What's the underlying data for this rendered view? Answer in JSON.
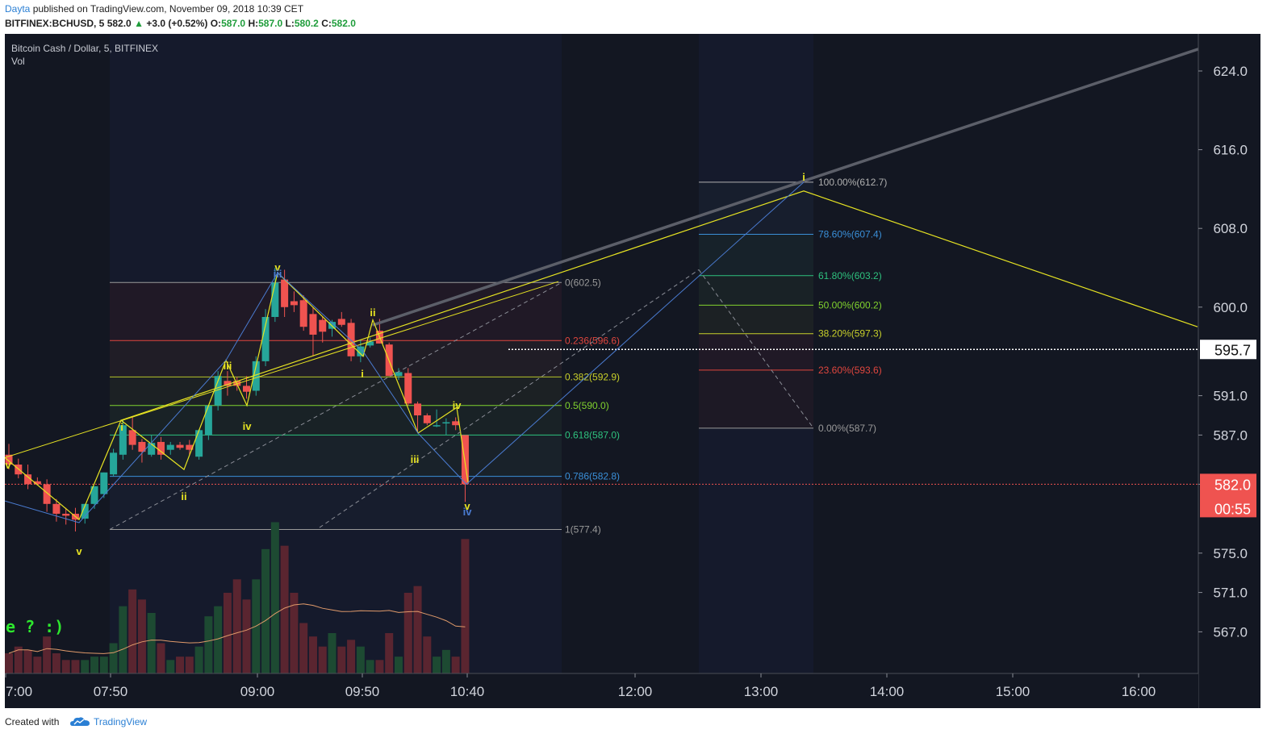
{
  "header": {
    "author": "Dayta",
    "published_text": "published on TradingView.com, November 09, 2018 10:39 CET",
    "symbol": "BITFINEX:BCHUSD",
    "interval": "5",
    "last": "582.0",
    "change_arrow": "▲",
    "change": "+3.0 (+0.52%)",
    "o_label": "O:",
    "o_val": "587.0",
    "h_label": "H:",
    "h_val": "587.0",
    "l_label": "L:",
    "l_val": "580.2",
    "c_label": "C:",
    "c_val": "582.0"
  },
  "legend": {
    "title": "Bitcoin Cash / Dollar, 5, BITFINEX",
    "indicator": "Vol"
  },
  "annotation_text": "e ? :)",
  "price_badges": {
    "dotted_level": "595.7",
    "last_price": "582.0",
    "countdown": "00:55"
  },
  "footer": {
    "created_with": "Created with",
    "brand": "TradingView"
  },
  "colors": {
    "bg": "#131722",
    "up": "#26a69a",
    "down": "#ef5350",
    "wave_yellow": "#e6e322",
    "wave_blue": "#4a7bd0",
    "trend_gray": "#6b6e78",
    "last_price_red": "#ef5350"
  },
  "chart_data": {
    "type": "candlestick",
    "title": "Bitcoin Cash / Dollar, 5, BITFINEX",
    "y_axis_ticks": [
      "624.0",
      "616.0",
      "608.0",
      "600.0",
      "591.0",
      "587.0",
      "582.0",
      "575.0",
      "571.0",
      "567.0"
    ],
    "x_axis_ticks": [
      "7:00",
      "07:50",
      "09:00",
      "09:50",
      "10:40",
      "12:00",
      "13:00",
      "14:00",
      "15:00",
      "16:00"
    ],
    "ylim": [
      562,
      628
    ],
    "candles": [
      {
        "o": 585.0,
        "h": 586.1,
        "l": 583.5,
        "c": 584.0,
        "v": 6
      },
      {
        "o": 584.0,
        "h": 584.6,
        "l": 582.6,
        "c": 583.0,
        "v": 8
      },
      {
        "o": 583.0,
        "h": 584.0,
        "l": 581.5,
        "c": 582.0,
        "v": 7
      },
      {
        "o": 582.3,
        "h": 582.7,
        "l": 581.9,
        "c": 582.0,
        "v": 5
      },
      {
        "o": 582.0,
        "h": 582.5,
        "l": 579.2,
        "c": 580.0,
        "v": 11
      },
      {
        "o": 580.0,
        "h": 580.5,
        "l": 578.2,
        "c": 579.0,
        "v": 6
      },
      {
        "o": 579.0,
        "h": 579.6,
        "l": 577.9,
        "c": 578.8,
        "v": 4
      },
      {
        "o": 579.0,
        "h": 579.6,
        "l": 577.2,
        "c": 578.4,
        "v": 4
      },
      {
        "o": 578.5,
        "h": 580.0,
        "l": 578.0,
        "c": 580.0,
        "v": 4
      },
      {
        "o": 580.0,
        "h": 581.8,
        "l": 579.5,
        "c": 581.8,
        "v": 5
      },
      {
        "o": 581.0,
        "h": 583.2,
        "l": 580.6,
        "c": 583.2,
        "v": 5
      },
      {
        "o": 583.0,
        "h": 585.6,
        "l": 582.8,
        "c": 585.2,
        "v": 9
      },
      {
        "o": 585.0,
        "h": 588.6,
        "l": 584.5,
        "c": 588.0,
        "v": 20
      },
      {
        "o": 587.5,
        "h": 588.8,
        "l": 585.5,
        "c": 586.0,
        "v": 25
      },
      {
        "o": 586.3,
        "h": 586.6,
        "l": 584.2,
        "c": 585.3,
        "v": 22
      },
      {
        "o": 585.0,
        "h": 587.0,
        "l": 584.8,
        "c": 586.2,
        "v": 18
      },
      {
        "o": 586.3,
        "h": 586.8,
        "l": 584.5,
        "c": 585.0,
        "v": 9
      },
      {
        "o": 585.5,
        "h": 586.3,
        "l": 585.0,
        "c": 586.0,
        "v": 4
      },
      {
        "o": 586.0,
        "h": 586.3,
        "l": 585.5,
        "c": 585.7,
        "v": 5
      },
      {
        "o": 586.0,
        "h": 586.5,
        "l": 585.0,
        "c": 585.5,
        "v": 5
      },
      {
        "o": 584.8,
        "h": 587.6,
        "l": 584.5,
        "c": 587.5,
        "v": 8
      },
      {
        "o": 587.0,
        "h": 590.0,
        "l": 586.5,
        "c": 590.0,
        "v": 17
      },
      {
        "o": 590.0,
        "h": 593.5,
        "l": 589.5,
        "c": 593.0,
        "v": 20
      },
      {
        "o": 592.5,
        "h": 593.5,
        "l": 591.0,
        "c": 592.0,
        "v": 24
      },
      {
        "o": 592.5,
        "h": 592.9,
        "l": 591.5,
        "c": 592.0,
        "v": 28
      },
      {
        "o": 592.0,
        "h": 593.0,
        "l": 590.7,
        "c": 591.4,
        "v": 22
      },
      {
        "o": 591.5,
        "h": 595.0,
        "l": 591.0,
        "c": 594.5,
        "v": 28
      },
      {
        "o": 594.5,
        "h": 599.8,
        "l": 594.0,
        "c": 599.0,
        "v": 37
      },
      {
        "o": 599.0,
        "h": 604.0,
        "l": 598.5,
        "c": 602.5,
        "v": 45
      },
      {
        "o": 602.8,
        "h": 603.8,
        "l": 599.0,
        "c": 600.0,
        "v": 38
      },
      {
        "o": 600.6,
        "h": 601.6,
        "l": 599.5,
        "c": 600.2,
        "v": 24
      },
      {
        "o": 600.7,
        "h": 601.2,
        "l": 597.6,
        "c": 598.0,
        "v": 15
      },
      {
        "o": 599.3,
        "h": 600.0,
        "l": 595.0,
        "c": 597.2,
        "v": 11
      },
      {
        "o": 598.7,
        "h": 599.0,
        "l": 596.4,
        "c": 597.5,
        "v": 8
      },
      {
        "o": 597.8,
        "h": 598.7,
        "l": 597.0,
        "c": 598.5,
        "v": 12
      },
      {
        "o": 598.8,
        "h": 599.5,
        "l": 598.0,
        "c": 598.2,
        "v": 8
      },
      {
        "o": 598.4,
        "h": 598.8,
        "l": 594.5,
        "c": 595.0,
        "v": 10
      },
      {
        "o": 595.0,
        "h": 596.7,
        "l": 594.4,
        "c": 596.0,
        "v": 8
      },
      {
        "o": 596.1,
        "h": 596.9,
        "l": 595.9,
        "c": 596.5,
        "v": 4
      },
      {
        "o": 597.6,
        "h": 598.8,
        "l": 596.3,
        "c": 596.3,
        "v": 4
      },
      {
        "o": 596.2,
        "h": 596.4,
        "l": 593.0,
        "c": 593.0,
        "v": 12
      },
      {
        "o": 593.0,
        "h": 593.8,
        "l": 592.6,
        "c": 593.4,
        "v": 5
      },
      {
        "o": 593.3,
        "h": 593.8,
        "l": 590.0,
        "c": 590.2,
        "v": 24
      },
      {
        "o": 590.2,
        "h": 590.4,
        "l": 587.4,
        "c": 589.0,
        "v": 26
      },
      {
        "o": 589.0,
        "h": 589.2,
        "l": 588.0,
        "c": 588.2,
        "v": 11
      },
      {
        "o": 588.0,
        "h": 589.6,
        "l": 587.8,
        "c": 588.0,
        "v": 5
      },
      {
        "o": 588.3,
        "h": 588.7,
        "l": 587.0,
        "c": 588.3,
        "v": 7
      },
      {
        "o": 588.4,
        "h": 588.8,
        "l": 587.5,
        "c": 588.0,
        "v": 5
      },
      {
        "o": 587.0,
        "h": 587.0,
        "l": 580.2,
        "c": 582.0,
        "v": 40
      }
    ],
    "fibonacci_retracement_left": [
      {
        "label": "0(602.5)",
        "value": 602.5
      },
      {
        "label": "0.236(596.6)",
        "value": 596.6
      },
      {
        "label": "0.382(592.9)",
        "value": 592.9
      },
      {
        "label": "0.5(590.0)",
        "value": 590.0
      },
      {
        "label": "0.618(587.0)",
        "value": 587.0
      },
      {
        "label": "0.786(582.8)",
        "value": 582.8
      },
      {
        "label": "1(577.4)",
        "value": 577.4
      }
    ],
    "fibonacci_extension_right": [
      {
        "label": "100.00%(612.7)",
        "value": 612.7
      },
      {
        "label": "78.60%(607.4)",
        "value": 607.4
      },
      {
        "label": "61.80%(603.2)",
        "value": 603.2
      },
      {
        "label": "50.00%(600.2)",
        "value": 600.2
      },
      {
        "label": "38.20%(597.3)",
        "value": 597.3
      },
      {
        "label": "23.60%(593.6)",
        "value": 593.6
      },
      {
        "label": "0.00%(587.7)",
        "value": 587.7
      }
    ],
    "wave_labels": [
      "v",
      "v",
      "i",
      "ii",
      "iii",
      "iv",
      "v",
      "iii",
      "i",
      "ii",
      "iii",
      "iv",
      "v",
      "iv",
      "i"
    ],
    "horizontal_lines": {
      "dotted_white": 595.7,
      "last_price_dotted_red": 582.0
    }
  }
}
